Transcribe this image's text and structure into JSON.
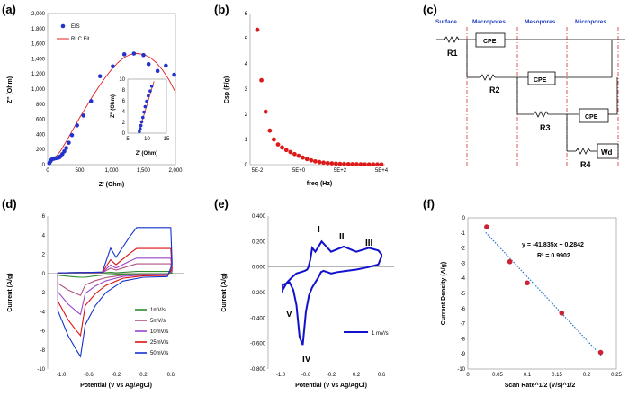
{
  "panel_labels": [
    "(a)",
    "(b)",
    "(c)",
    "(d)",
    "(e)",
    "(f)"
  ],
  "colors": {
    "eis": "#2233cc",
    "fit": "#e02020",
    "cs": "#dd1a1a",
    "cv_e": "#1111cc",
    "fit_f": "#2b70c9",
    "pts_f": "#cc2233",
    "zone_line": "#d03030",
    "zone_text": "#1f3fbf"
  },
  "chart_data": [
    {
      "id": "a",
      "type": "scatter",
      "xlabel": "Z' (Ohm)",
      "ylabel": "Z'' (Ohm)",
      "xlim": [
        0,
        2000
      ],
      "ylim": [
        0,
        2000
      ],
      "xticks": [
        "0",
        "500",
        "1,000",
        "1,500",
        "2,000"
      ],
      "yticks": [
        "0",
        "200",
        "400",
        "600",
        "800",
        "1,000",
        "1,200",
        "1,400",
        "1,600",
        "1,800",
        "2,000"
      ],
      "legend": [
        "EIS",
        "RLC Fit"
      ],
      "series": [
        {
          "name": "EIS",
          "x": [
            25,
            40,
            55,
            70,
            90,
            110,
            130,
            155,
            180,
            200,
            230,
            260,
            290,
            330,
            380,
            460,
            560,
            680,
            820,
            1020,
            1200,
            1350,
            1500,
            1580,
            1720,
            1850,
            1980
          ],
          "y": [
            20,
            40,
            60,
            72,
            78,
            82,
            85,
            90,
            95,
            110,
            140,
            175,
            220,
            290,
            390,
            520,
            650,
            840,
            1170,
            1300,
            1460,
            1470,
            1450,
            1330,
            1240,
            1310,
            1190
          ]
        },
        {
          "name": "RLC Fit",
          "x": [
            0,
            100,
            200,
            300,
            400,
            500,
            600,
            700,
            800,
            900,
            1000,
            1100,
            1200,
            1300,
            1400,
            1500,
            1600,
            1700,
            1800,
            1900,
            2000
          ],
          "y": [
            20,
            75,
            180,
            320,
            470,
            620,
            760,
            900,
            1030,
            1150,
            1260,
            1350,
            1420,
            1460,
            1470,
            1460,
            1420,
            1350,
            1250,
            1120,
            960
          ]
        }
      ],
      "inset": {
        "xlabel": "Z' (Ohm)",
        "ylabel": "Z'' (Ohm)",
        "xlim": [
          5,
          15
        ],
        "ylim": [
          0,
          10
        ],
        "xticks": [
          "5",
          "10",
          "15"
        ],
        "yticks": [
          "0",
          "2",
          "4",
          "6",
          "8",
          "10"
        ],
        "x": [
          8,
          8.2,
          8.4,
          8.6,
          8.9,
          9.2,
          9.5,
          9.9,
          10.3,
          10.8,
          11.2
        ],
        "y": [
          0.3,
          0.8,
          1.4,
          2.1,
          2.9,
          3.9,
          4.9,
          5.9,
          6.9,
          7.8,
          8.7
        ],
        "fit_x": [
          7.8,
          11.8
        ],
        "fit_y": [
          0,
          9.6
        ]
      }
    },
    {
      "id": "b",
      "type": "scatter",
      "xlabel": "freq (Hz)",
      "ylabel": "Csp (F/g)",
      "xticks": [
        "5E-2",
        "5E+0",
        "5E+2",
        "5E+4"
      ],
      "yticks": [
        "0",
        "1",
        "2",
        "3",
        "4",
        "5",
        "6"
      ],
      "ylim": [
        0,
        6
      ],
      "xlog": [
        -1.301,
        4.699
      ],
      "x": [
        0.05,
        0.079,
        0.126,
        0.2,
        0.316,
        0.5,
        0.79,
        1.26,
        2,
        3.16,
        5,
        7.9,
        12.6,
        20,
        31.6,
        50,
        79,
        126,
        200,
        316,
        500,
        790,
        1260,
        2000,
        3160,
        5000,
        7900,
        12600,
        20000,
        31600,
        50000
      ],
      "y": [
        5.35,
        3.35,
        2.1,
        1.35,
        1.0,
        0.8,
        0.68,
        0.58,
        0.5,
        0.42,
        0.35,
        0.28,
        0.22,
        0.17,
        0.13,
        0.1,
        0.08,
        0.06,
        0.05,
        0.04,
        0.03,
        0.025,
        0.02,
        0.018,
        0.015,
        0.012,
        0.01,
        0.01,
        0.01,
        0.01,
        0.01
      ]
    },
    {
      "id": "d",
      "type": "line",
      "xlabel": "Potential (V vs Ag/AgCl)",
      "ylabel": "Current (A/g)",
      "xlim": [
        -1.2,
        0.8
      ],
      "ylim": [
        -10,
        6
      ],
      "xticks": [
        "-1.0",
        "-0.6",
        "-0.2",
        "0.2",
        "0.6"
      ],
      "yticks": [
        "6",
        "4",
        "2",
        "0",
        "-2",
        "-4",
        "-6",
        "-8",
        "-10"
      ],
      "series": [
        {
          "name": "1mV/s",
          "color": "#2e8b2e",
          "peak_hi": 0.2,
          "peak_lo": -0.5,
          "cathodic": -0.4
        },
        {
          "name": "5mV/s",
          "color": "#b05080",
          "peak_hi": 1.0,
          "peak_lo": -1.5,
          "cathodic": -2.3
        },
        {
          "name": "10mV/s",
          "color": "#9a44cc",
          "peak_hi": 1.6,
          "peak_lo": -2.6,
          "cathodic": -4.3
        },
        {
          "name": "25mV/s",
          "color": "#dd1111",
          "peak_hi": 2.6,
          "peak_lo": -4.2,
          "cathodic": -6.5
        },
        {
          "name": "50mV/s",
          "color": "#1133cc",
          "peak_hi": 4.8,
          "peak_lo": -6.7,
          "cathodic": -8.7
        }
      ]
    },
    {
      "id": "e",
      "type": "line",
      "xlabel": "Potential (V vs Ag/AgCl)",
      "ylabel": "Current (A/g)",
      "xlim": [
        -1.2,
        0.8
      ],
      "ylim": [
        -0.8,
        0.4
      ],
      "xticks": [
        "-1.0",
        "-0.6",
        "-0.2",
        "0.2",
        "0.6"
      ],
      "yticks": [
        "0.400",
        "0.200",
        "0.000",
        "-0.200",
        "-0.400",
        "-0.600",
        "-0.800"
      ],
      "legend": [
        "1 mV/s"
      ],
      "annotations": [
        "I",
        "II",
        "III",
        "IV",
        "V"
      ],
      "series": [
        {
          "name": "1 mV/s",
          "x": [
            0.6,
            0.55,
            0.4,
            0.2,
            0.05,
            -0.1,
            -0.2,
            -0.26,
            -0.32,
            -0.36,
            -0.4,
            -0.45,
            -0.5,
            -0.55,
            -0.6,
            -0.65,
            -0.7,
            -0.75,
            -0.8,
            -0.86,
            -0.92,
            -0.97,
            -0.97,
            -0.9,
            -0.82,
            -0.75,
            -0.68,
            -0.62,
            -0.58,
            -0.56,
            -0.53,
            -0.5,
            -0.45,
            -0.35,
            -0.2,
            0.0,
            0.2,
            0.4,
            0.55,
            0.6
          ],
          "y": [
            0.08,
            0.02,
            0.0,
            -0.02,
            -0.03,
            -0.04,
            -0.05,
            -0.04,
            -0.03,
            -0.04,
            -0.08,
            -0.12,
            -0.16,
            -0.22,
            -0.35,
            -0.61,
            -0.55,
            -0.3,
            -0.18,
            -0.12,
            -0.13,
            -0.14,
            -0.18,
            -0.12,
            -0.08,
            -0.05,
            -0.04,
            -0.03,
            -0.02,
            0.0,
            0.06,
            0.15,
            0.12,
            0.2,
            0.12,
            0.16,
            0.12,
            0.15,
            0.13,
            0.1
          ]
        }
      ]
    },
    {
      "id": "f",
      "type": "scatter",
      "xlabel": "Scan Rate^1/2 (V/s)^1/2",
      "ylabel": "Current Density (A/g)",
      "xlim": [
        0,
        0.25
      ],
      "ylim": [
        -10,
        0
      ],
      "xticks": [
        "0",
        "0.05",
        "0.1",
        "0.15",
        "0.2",
        "0.25"
      ],
      "yticks": [
        "0",
        "-1",
        "-2",
        "-3",
        "-4",
        "-5",
        "-6",
        "-7",
        "-8",
        "-9",
        "-10"
      ],
      "equation": "y = -41.835x + 0.2842",
      "r2": "R² = 0.9902",
      "x": [
        0.0316,
        0.0707,
        0.1,
        0.158,
        0.2236
      ],
      "y": [
        -0.6,
        -2.9,
        -4.3,
        -6.3,
        -8.9
      ],
      "fit": [
        0.2842,
        -41.835
      ]
    }
  ],
  "circuit": {
    "zones": [
      "Surface",
      "Macropores",
      "Mesopores",
      "Micropores"
    ],
    "elements": [
      "R1",
      "CPE",
      "R2",
      "CPE",
      "R3",
      "CPE",
      "R4",
      "Wd"
    ]
  }
}
